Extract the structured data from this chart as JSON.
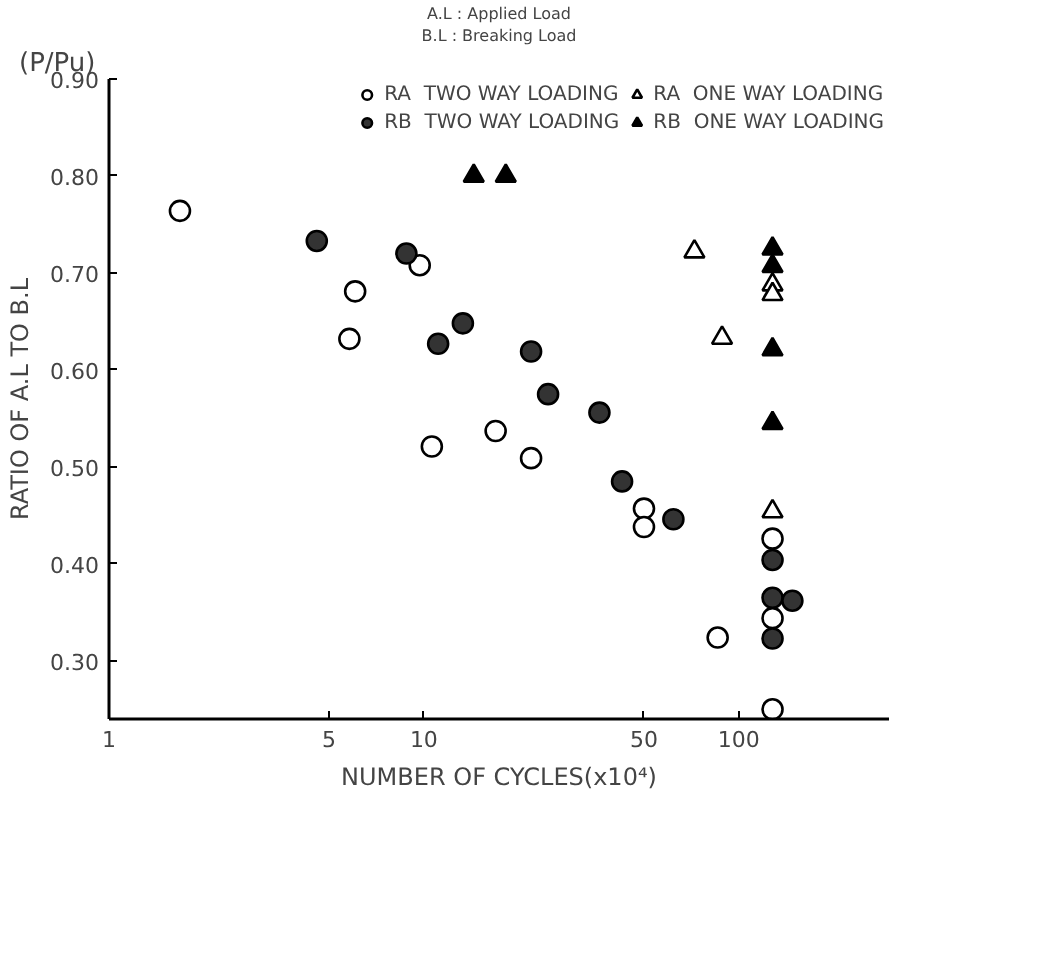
{
  "chart_data": {
    "type": "scatter",
    "xlabel": "NUMBER OF CYCLES(x10⁴)",
    "ylabel": "RATIO OF A.L TO B.L",
    "annotations": [
      "(P/Pu)",
      "A.L : Applied Load",
      "B.L : Breaking Load"
    ],
    "log": "x",
    "xlim": [
      1,
      300
    ],
    "xticks": [
      1,
      5,
      10,
      50,
      100
    ],
    "ylim": [
      0.24,
      0.9
    ],
    "yticks": [
      {
        "value": 0.3,
        "label": "0.30"
      },
      {
        "value": 0.4,
        "label": "0.40"
      },
      {
        "value": 0.5,
        "label": "0.50"
      },
      {
        "value": 0.6,
        "label": "0.60"
      },
      {
        "value": 0.7,
        "label": "0.70"
      },
      {
        "value": 0.8,
        "label": "0.80"
      },
      {
        "value": 0.9,
        "label": "0.90"
      }
    ],
    "grid": false,
    "legend": "top right",
    "series": [
      {
        "name": "RA  TWO WAY LOADING",
        "color": "#ffffff",
        "marker": "circle",
        "x": [
          1.68,
          6.05,
          5.8,
          9.7,
          16.9,
          10.6,
          21.9,
          50,
          50,
          128,
          128,
          85.7,
          128
        ],
        "values": [
          0.764,
          0.681,
          0.632,
          0.708,
          0.537,
          0.521,
          0.509,
          0.457,
          0.438,
          0.426,
          0.344,
          0.324,
          0.25
        ]
      },
      {
        "name": "RB  TWO WAY LOADING",
        "color": "#333333",
        "marker": "circle",
        "x": [
          4.57,
          8.8,
          13.3,
          11.1,
          21.9,
          24.8,
          36.1,
          42.6,
          62,
          128,
          128,
          148,
          128
        ],
        "values": [
          0.733,
          0.72,
          0.648,
          0.627,
          0.619,
          0.575,
          0.556,
          0.485,
          0.446,
          0.404,
          0.365,
          0.362,
          0.323
        ]
      },
      {
        "name": "RA  ONE WAY LOADING",
        "color": "#ffffff",
        "marker": "triangle",
        "x": [
          72.3,
          128,
          128,
          88.5,
          128
        ],
        "values": [
          0.722,
          0.688,
          0.678,
          0.633,
          0.454
        ]
      },
      {
        "name": "RB  ONE WAY LOADING",
        "color": "#000000",
        "marker": "triangle",
        "x": [
          14.4,
          18.2,
          128,
          128,
          128,
          128
        ],
        "values": [
          0.8,
          0.8,
          0.725,
          0.707,
          0.621,
          0.545
        ]
      }
    ]
  }
}
